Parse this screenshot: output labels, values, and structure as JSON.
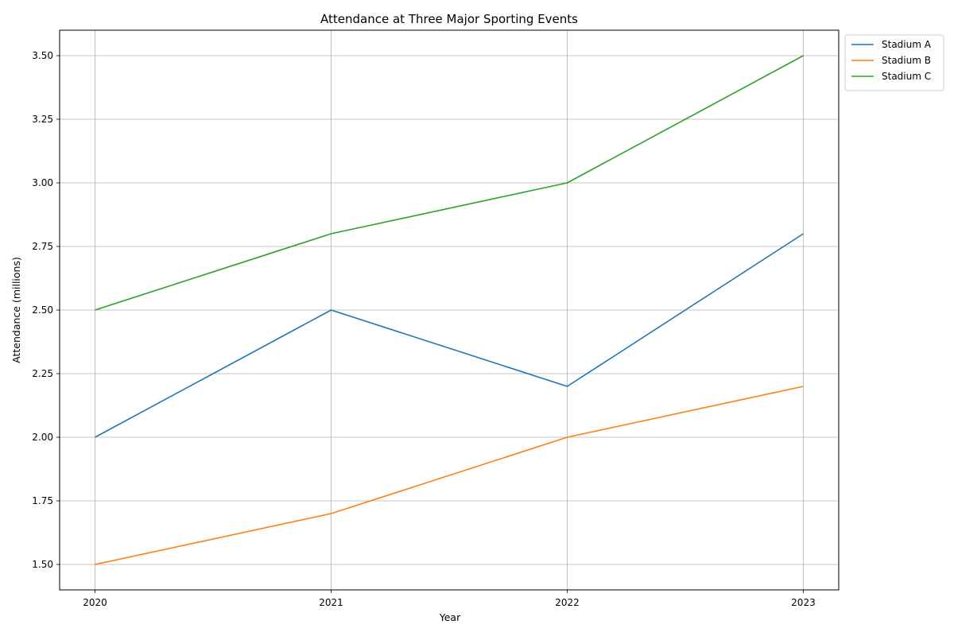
{
  "chart_data": {
    "type": "line",
    "title": "Attendance at Three Major Sporting Events",
    "xlabel": "Year",
    "ylabel": "Attendance (millions)",
    "x": [
      "2020",
      "2021",
      "2022",
      "2023"
    ],
    "xlim": [
      -0.15,
      3.15
    ],
    "ylim": [
      1.4,
      3.6
    ],
    "yticks": [
      "1.50",
      "1.75",
      "2.00",
      "2.25",
      "2.50",
      "2.75",
      "3.00",
      "3.25",
      "3.50"
    ],
    "grid": true,
    "legend_position": "outside-top-right",
    "series": [
      {
        "name": "Stadium A",
        "color": "#1f77b4",
        "values": [
          2.0,
          2.5,
          2.2,
          2.8
        ]
      },
      {
        "name": "Stadium B",
        "color": "#ff7f0e",
        "values": [
          1.5,
          1.7,
          2.0,
          2.2
        ]
      },
      {
        "name": "Stadium C",
        "color": "#2ca02c",
        "values": [
          2.5,
          2.8,
          3.0,
          3.5
        ]
      }
    ]
  }
}
